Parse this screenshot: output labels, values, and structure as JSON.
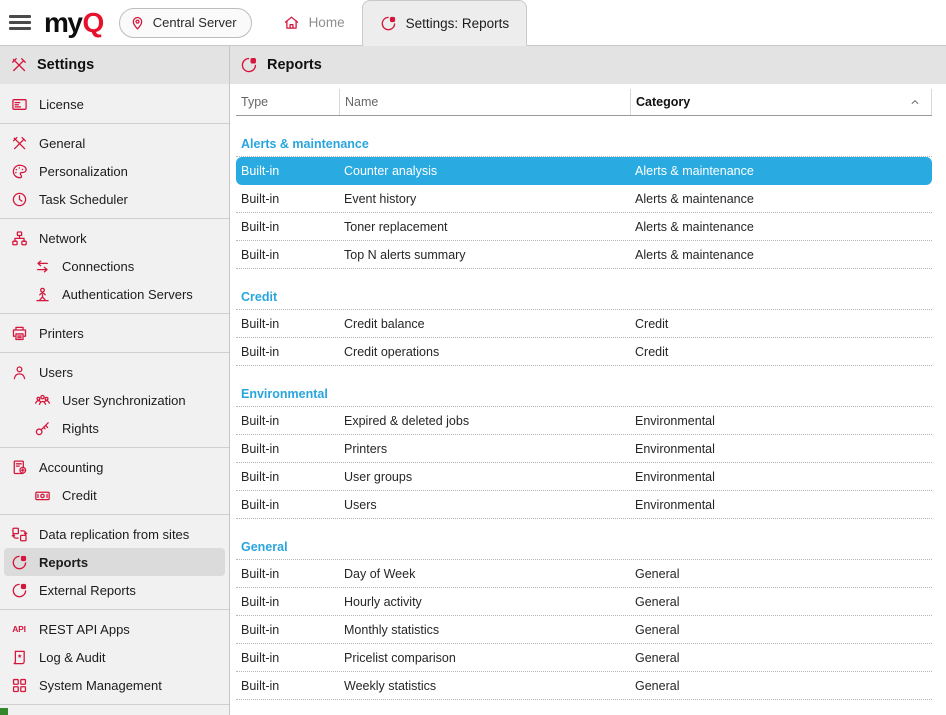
{
  "brand": {
    "name_prefix": "my",
    "name_suffix": "Q"
  },
  "topbar": {
    "server_label": "Central Server",
    "tabs": [
      {
        "label": "Home",
        "icon": "home-icon",
        "active": false
      },
      {
        "label": "Settings: Reports",
        "icon": "reports-pie-icon",
        "active": true
      }
    ]
  },
  "sidebar": {
    "title": "Settings",
    "title_icon": "tools-icon",
    "groups": [
      {
        "items": [
          {
            "label": "License",
            "icon": "license-icon"
          }
        ]
      },
      {
        "items": [
          {
            "label": "General",
            "icon": "tools-icon"
          },
          {
            "label": "Personalization",
            "icon": "palette-icon"
          },
          {
            "label": "Task Scheduler",
            "icon": "clock-icon"
          }
        ]
      },
      {
        "items": [
          {
            "label": "Network",
            "icon": "network-icon"
          },
          {
            "label": "Connections",
            "icon": "sync-arrows-icon",
            "indent": true
          },
          {
            "label": "Authentication Servers",
            "icon": "auth-person-icon",
            "indent": true
          }
        ]
      },
      {
        "items": [
          {
            "label": "Printers",
            "icon": "printer-icon"
          }
        ]
      },
      {
        "items": [
          {
            "label": "Users",
            "icon": "user-icon"
          },
          {
            "label": "User Synchronization",
            "icon": "user-group-icon",
            "indent": true
          },
          {
            "label": "Rights",
            "icon": "key-icon",
            "indent": true
          }
        ]
      },
      {
        "items": [
          {
            "label": "Accounting",
            "icon": "accounting-icon"
          },
          {
            "label": "Credit",
            "icon": "banknote-icon",
            "indent": true
          }
        ]
      },
      {
        "items": [
          {
            "label": "Data replication from sites",
            "icon": "replication-icon"
          },
          {
            "label": "Reports",
            "icon": "reports-pie-icon",
            "selected": true
          },
          {
            "label": "External Reports",
            "icon": "reports-pie-icon"
          }
        ]
      },
      {
        "items": [
          {
            "label": "REST API Apps",
            "icon": "api-icon"
          },
          {
            "label": "Log & Audit",
            "icon": "log-scroll-icon"
          },
          {
            "label": "System Management",
            "icon": "grid-icon"
          }
        ]
      }
    ]
  },
  "main": {
    "title": "Reports",
    "title_icon": "reports-pie-icon",
    "table": {
      "columns": [
        {
          "label": "Type"
        },
        {
          "label": "Name"
        },
        {
          "label": "Category",
          "sorted": "asc",
          "sort_icon": "chevron-up-icon"
        }
      ],
      "groups": [
        {
          "name": "Alerts & maintenance",
          "rows": [
            {
              "type": "Built-in",
              "name": "Counter analysis",
              "category": "Alerts & maintenance",
              "selected": true
            },
            {
              "type": "Built-in",
              "name": "Event history",
              "category": "Alerts & maintenance"
            },
            {
              "type": "Built-in",
              "name": "Toner replacement",
              "category": "Alerts & maintenance"
            },
            {
              "type": "Built-in",
              "name": "Top N alerts summary",
              "category": "Alerts & maintenance"
            }
          ]
        },
        {
          "name": "Credit",
          "rows": [
            {
              "type": "Built-in",
              "name": "Credit balance",
              "category": "Credit"
            },
            {
              "type": "Built-in",
              "name": "Credit operations",
              "category": "Credit"
            }
          ]
        },
        {
          "name": "Environmental",
          "rows": [
            {
              "type": "Built-in",
              "name": "Expired & deleted jobs",
              "category": "Environmental"
            },
            {
              "type": "Built-in",
              "name": "Printers",
              "category": "Environmental"
            },
            {
              "type": "Built-in",
              "name": "User groups",
              "category": "Environmental"
            },
            {
              "type": "Built-in",
              "name": "Users",
              "category": "Environmental"
            }
          ]
        },
        {
          "name": "General",
          "rows": [
            {
              "type": "Built-in",
              "name": "Day of Week",
              "category": "General"
            },
            {
              "type": "Built-in",
              "name": "Hourly activity",
              "category": "General"
            },
            {
              "type": "Built-in",
              "name": "Monthly statistics",
              "category": "General"
            },
            {
              "type": "Built-in",
              "name": "Pricelist comparison",
              "category": "General"
            },
            {
              "type": "Built-in",
              "name": "Weekly statistics",
              "category": "General"
            }
          ]
        }
      ]
    }
  },
  "colors": {
    "brand_red": "#d4163c",
    "logo_red": "#e8112d",
    "selection_blue": "#29abe2",
    "group_header_blue": "#29a5de",
    "sidebar_bg": "#f1f1f1",
    "panel_header_bg": "#e3e3e3",
    "selected_item_bg": "#dbdbdb",
    "status_green": "#35872e"
  }
}
